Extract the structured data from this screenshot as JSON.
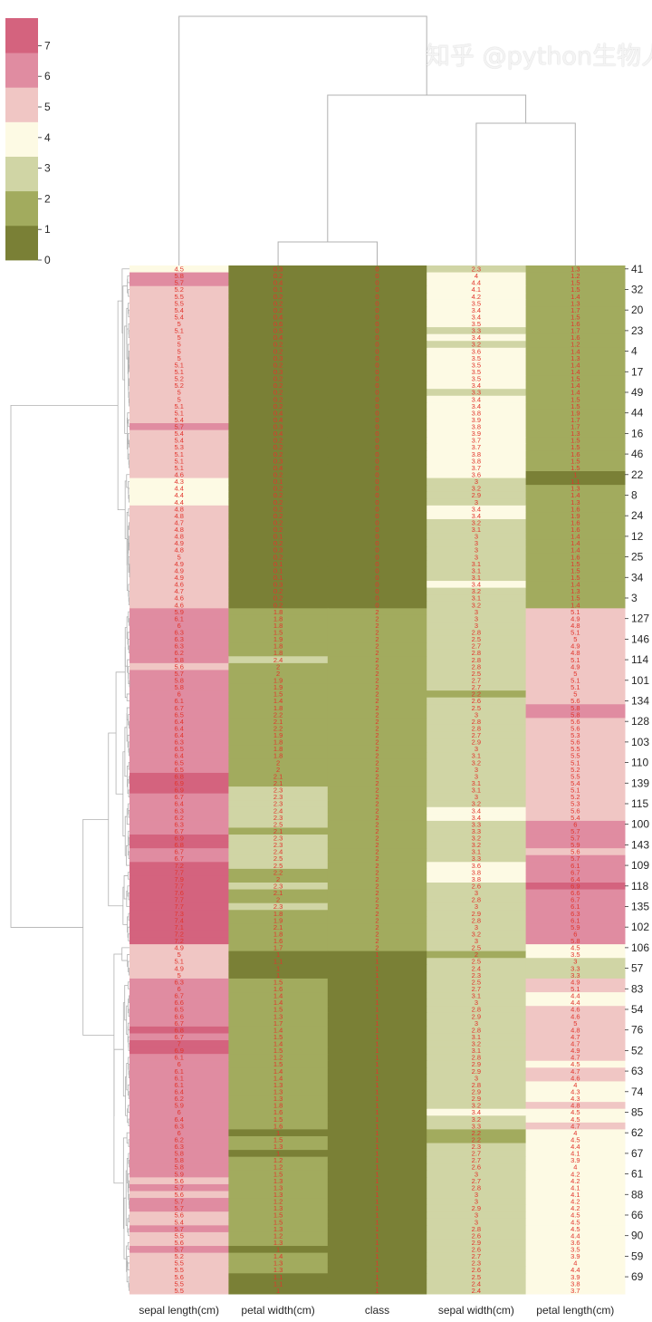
{
  "chart_data": {
    "type": "heatmap",
    "subtype": "clustermap",
    "columns": [
      "sepal length(cm)",
      "petal width(cm)",
      "class",
      "sepal width(cm)",
      "petal length(cm)"
    ],
    "annotated": true,
    "colorbar": {
      "vmin": 0,
      "vmax": 7.9,
      "ticks": [
        0,
        1,
        2,
        3,
        4,
        5,
        6,
        7
      ],
      "bins": 7,
      "placement": "top-left"
    },
    "colors": [
      "#7a8036",
      "#a2ab5e",
      "#d0d5a5",
      "#fdfae4",
      "#f0c6c4",
      "#e08ca1",
      "#d4637e"
    ],
    "annotation_color": "#e2342c",
    "row_dendrogram": "left",
    "col_dendrogram": "top",
    "row_tick_labels": [
      "41",
      "32",
      "20",
      "23",
      "4",
      "17",
      "49",
      "44",
      "16",
      "46",
      "22",
      "8",
      "24",
      "12",
      "25",
      "34",
      "3",
      "127",
      "146",
      "114",
      "101",
      "134",
      "128",
      "103",
      "110",
      "139",
      "115",
      "100",
      "143",
      "109",
      "118",
      "135",
      "102",
      "106",
      "57",
      "83",
      "54",
      "76",
      "52",
      "63",
      "74",
      "85",
      "62",
      "67",
      "61",
      "88",
      "66",
      "90",
      "59",
      "69"
    ],
    "rows": [
      [
        4.5,
        0.3,
        0,
        2.3,
        1.3
      ],
      [
        5.8,
        0.2,
        0,
        4,
        1.2
      ],
      [
        5.7,
        0.4,
        0,
        4.4,
        1.5
      ],
      [
        5.2,
        0.1,
        0,
        4.1,
        1.5
      ],
      [
        5.5,
        0.2,
        0,
        4.2,
        1.4
      ],
      [
        5.5,
        0.2,
        0,
        3.5,
        1.3
      ],
      [
        5.4,
        0.2,
        0,
        3.4,
        1.7
      ],
      [
        5.4,
        0.4,
        0,
        3.4,
        1.5
      ],
      [
        5,
        0.6,
        0,
        3.5,
        1.6
      ],
      [
        5.1,
        0.5,
        0,
        3.3,
        1.7
      ],
      [
        5,
        0.4,
        0,
        3.4,
        1.6
      ],
      [
        5,
        0.2,
        0,
        3.2,
        1.2
      ],
      [
        5,
        0.2,
        0,
        3.6,
        1.4
      ],
      [
        5,
        0.3,
        0,
        3.5,
        1.3
      ],
      [
        5.1,
        0.2,
        0,
        3.5,
        1.4
      ],
      [
        5.1,
        0.3,
        0,
        3.5,
        1.4
      ],
      [
        5.2,
        0.2,
        0,
        3.5,
        1.5
      ],
      [
        5.2,
        0.2,
        0,
        3.4,
        1.4
      ],
      [
        5,
        0.2,
        0,
        3.3,
        1.4
      ],
      [
        5,
        0.2,
        0,
        3.4,
        1.5
      ],
      [
        5.1,
        0.2,
        0,
        3.4,
        1.5
      ],
      [
        5.1,
        0.4,
        0,
        3.8,
        1.9
      ],
      [
        5.4,
        0.4,
        0,
        3.9,
        1.7
      ],
      [
        5.7,
        0.3,
        0,
        3.8,
        1.7
      ],
      [
        5.4,
        0.4,
        0,
        3.9,
        1.3
      ],
      [
        5.4,
        0.2,
        0,
        3.7,
        1.5
      ],
      [
        5.3,
        0.2,
        0,
        3.7,
        1.5
      ],
      [
        5.1,
        0.2,
        0,
        3.8,
        1.6
      ],
      [
        5.1,
        0.3,
        0,
        3.8,
        1.5
      ],
      [
        5.1,
        0.4,
        0,
        3.7,
        1.5
      ],
      [
        4.6,
        0.2,
        0,
        3.6,
        1
      ],
      [
        4.3,
        0.1,
        0,
        3,
        1.1
      ],
      [
        4.4,
        0.2,
        0,
        3.2,
        1.3
      ],
      [
        4.4,
        0.2,
        0,
        2.9,
        1.4
      ],
      [
        4.4,
        0.2,
        0,
        3,
        1.3
      ],
      [
        4.8,
        0.2,
        0,
        3.4,
        1.6
      ],
      [
        4.8,
        0.2,
        0,
        3.4,
        1.9
      ],
      [
        4.7,
        0.2,
        0,
        3.2,
        1.6
      ],
      [
        4.8,
        0.2,
        0,
        3.1,
        1.6
      ],
      [
        4.8,
        0.1,
        0,
        3,
        1.4
      ],
      [
        4.9,
        0.2,
        0,
        3,
        1.4
      ],
      [
        4.8,
        0.3,
        0,
        3,
        1.4
      ],
      [
        5,
        0.2,
        0,
        3,
        1.6
      ],
      [
        4.9,
        0.1,
        0,
        3.1,
        1.5
      ],
      [
        4.9,
        0.1,
        0,
        3.1,
        1.5
      ],
      [
        4.9,
        0.1,
        0,
        3.1,
        1.5
      ],
      [
        4.6,
        0.3,
        0,
        3.4,
        1.4
      ],
      [
        4.7,
        0.2,
        0,
        3.2,
        1.3
      ],
      [
        4.6,
        0.2,
        0,
        3.1,
        1.5
      ],
      [
        4.6,
        0.2,
        0,
        3.2,
        1.4
      ],
      [
        5.9,
        1.8,
        2,
        3,
        5.1
      ],
      [
        6.1,
        1.8,
        2,
        3,
        4.9
      ],
      [
        6,
        1.8,
        2,
        3,
        4.8
      ],
      [
        6.3,
        1.5,
        2,
        2.8,
        5.1
      ],
      [
        6.3,
        1.9,
        2,
        2.5,
        5
      ],
      [
        6.3,
        1.8,
        2,
        2.7,
        4.9
      ],
      [
        6.2,
        1.8,
        2,
        2.8,
        4.8
      ],
      [
        5.8,
        2.4,
        2,
        2.8,
        5.1
      ],
      [
        5.6,
        2,
        2,
        2.8,
        4.9
      ],
      [
        5.7,
        2,
        2,
        2.5,
        5
      ],
      [
        5.8,
        1.9,
        2,
        2.7,
        5.1
      ],
      [
        5.8,
        1.9,
        2,
        2.7,
        5.1
      ],
      [
        6,
        1.5,
        2,
        2.2,
        5
      ],
      [
        6.1,
        1.4,
        2,
        2.6,
        5.6
      ],
      [
        6.7,
        1.8,
        2,
        2.5,
        5.8
      ],
      [
        6.5,
        2.2,
        2,
        3,
        5.8
      ],
      [
        6.4,
        2.1,
        2,
        2.8,
        5.6
      ],
      [
        6.4,
        2.2,
        2,
        2.8,
        5.6
      ],
      [
        6.4,
        1.9,
        2,
        2.7,
        5.3
      ],
      [
        6.3,
        1.8,
        2,
        2.9,
        5.6
      ],
      [
        6.5,
        1.8,
        2,
        3,
        5.5
      ],
      [
        6.4,
        1.8,
        2,
        3.1,
        5.5
      ],
      [
        6.5,
        2,
        2,
        3.2,
        5.1
      ],
      [
        6.5,
        2,
        2,
        3,
        5.2
      ],
      [
        6.8,
        2.1,
        2,
        3,
        5.5
      ],
      [
        6.9,
        2.1,
        2,
        3.1,
        5.4
      ],
      [
        6.9,
        2.3,
        2,
        3.1,
        5.1
      ],
      [
        6.7,
        2.3,
        2,
        3,
        5.2
      ],
      [
        6.4,
        2.3,
        2,
        3.2,
        5.3
      ],
      [
        6.3,
        2.4,
        2,
        3.4,
        5.6
      ],
      [
        6.2,
        2.3,
        2,
        3.4,
        5.4
      ],
      [
        6.3,
        2.5,
        2,
        3.3,
        6
      ],
      [
        6.7,
        2.1,
        2,
        3.3,
        5.7
      ],
      [
        6.9,
        2.3,
        2,
        3.2,
        5.7
      ],
      [
        6.8,
        2.3,
        2,
        3.2,
        5.9
      ],
      [
        6.7,
        2.4,
        2,
        3.1,
        5.6
      ],
      [
        6.7,
        2.5,
        2,
        3.3,
        5.7
      ],
      [
        7.2,
        2.5,
        2,
        3.6,
        6.1
      ],
      [
        7.7,
        2.2,
        2,
        3.8,
        6.7
      ],
      [
        7.9,
        2,
        2,
        3.8,
        6.4
      ],
      [
        7.7,
        2.3,
        2,
        2.6,
        6.9
      ],
      [
        7.6,
        2.1,
        2,
        3,
        6.6
      ],
      [
        7.7,
        2,
        2,
        2.8,
        6.7
      ],
      [
        7.7,
        2.3,
        2,
        3,
        6.1
      ],
      [
        7.3,
        1.8,
        2,
        2.9,
        6.3
      ],
      [
        7.4,
        1.9,
        2,
        2.8,
        6.1
      ],
      [
        7.1,
        2.1,
        2,
        3,
        5.9
      ],
      [
        7.2,
        1.8,
        2,
        3.2,
        6
      ],
      [
        7.2,
        1.6,
        2,
        3,
        5.8
      ],
      [
        4.9,
        1.7,
        2,
        2.5,
        4.5
      ],
      [
        5,
        1,
        1,
        2,
        3.5
      ],
      [
        5.1,
        1.1,
        1,
        2.5,
        3
      ],
      [
        4.9,
        1,
        1,
        2.4,
        3.3
      ],
      [
        5,
        1,
        1,
        2.3,
        3.3
      ],
      [
        6.3,
        1.5,
        1,
        2.5,
        4.9
      ],
      [
        6,
        1.6,
        1,
        2.7,
        5.1
      ],
      [
        6.7,
        1.4,
        1,
        3.1,
        4.4
      ],
      [
        6.6,
        1.4,
        1,
        3,
        4.4
      ],
      [
        6.5,
        1.5,
        1,
        2.8,
        4.6
      ],
      [
        6.6,
        1.3,
        1,
        2.9,
        4.6
      ],
      [
        6.7,
        1.7,
        1,
        3,
        5
      ],
      [
        6.8,
        1.4,
        1,
        2.8,
        4.8
      ],
      [
        6.7,
        1.5,
        1,
        3.1,
        4.7
      ],
      [
        7,
        1.4,
        1,
        3.2,
        4.7
      ],
      [
        6.9,
        1.5,
        1,
        3.1,
        4.9
      ],
      [
        6.1,
        1.2,
        1,
        2.8,
        4.7
      ],
      [
        6,
        1.5,
        1,
        2.9,
        4.5
      ],
      [
        6.1,
        1.4,
        1,
        2.9,
        4.7
      ],
      [
        6.1,
        1.4,
        1,
        3,
        4.6
      ],
      [
        6.1,
        1.3,
        1,
        2.8,
        4
      ],
      [
        6.4,
        1.3,
        1,
        2.9,
        4.3
      ],
      [
        6.2,
        1.3,
        1,
        2.9,
        4.3
      ],
      [
        5.9,
        1.8,
        1,
        3.2,
        4.8
      ],
      [
        6,
        1.6,
        1,
        3.4,
        4.5
      ],
      [
        6.4,
        1.5,
        1,
        3.2,
        4.5
      ],
      [
        6.3,
        1.6,
        1,
        3.3,
        4.7
      ],
      [
        6,
        1,
        1,
        2.2,
        4
      ],
      [
        6.2,
        1.5,
        1,
        2.2,
        4.5
      ],
      [
        6.3,
        1.3,
        1,
        2.3,
        4.4
      ],
      [
        5.8,
        1,
        1,
        2.7,
        4.1
      ],
      [
        5.8,
        1.2,
        1,
        2.7,
        3.9
      ],
      [
        5.8,
        1.2,
        1,
        2.6,
        4
      ],
      [
        5.9,
        1.5,
        1,
        3,
        4.2
      ],
      [
        5.6,
        1.3,
        1,
        2.7,
        4.2
      ],
      [
        5.7,
        1.3,
        1,
        2.8,
        4.1
      ],
      [
        5.6,
        1.3,
        1,
        3,
        4.1
      ],
      [
        5.7,
        1.2,
        1,
        3,
        4.2
      ],
      [
        5.7,
        1.3,
        1,
        2.9,
        4.2
      ],
      [
        5.6,
        1.5,
        1,
        3,
        4.5
      ],
      [
        5.4,
        1.5,
        1,
        3,
        4.5
      ],
      [
        5.7,
        1.3,
        1,
        2.8,
        4.5
      ],
      [
        5.5,
        1.2,
        1,
        2.6,
        4.4
      ],
      [
        5.6,
        1.3,
        1,
        2.9,
        3.6
      ],
      [
        5.7,
        1,
        1,
        2.6,
        3.5
      ],
      [
        5.2,
        1.4,
        1,
        2.7,
        3.9
      ],
      [
        5.5,
        1.3,
        1,
        2.3,
        4
      ],
      [
        5.5,
        1.3,
        1,
        2.6,
        4.4
      ],
      [
        5.6,
        1.1,
        1,
        2.5,
        3.9
      ],
      [
        5.5,
        1.1,
        1,
        2.4,
        3.8
      ],
      [
        5.5,
        1,
        1,
        2.4,
        3.7
      ]
    ]
  },
  "watermark": "知乎 @python生物人"
}
